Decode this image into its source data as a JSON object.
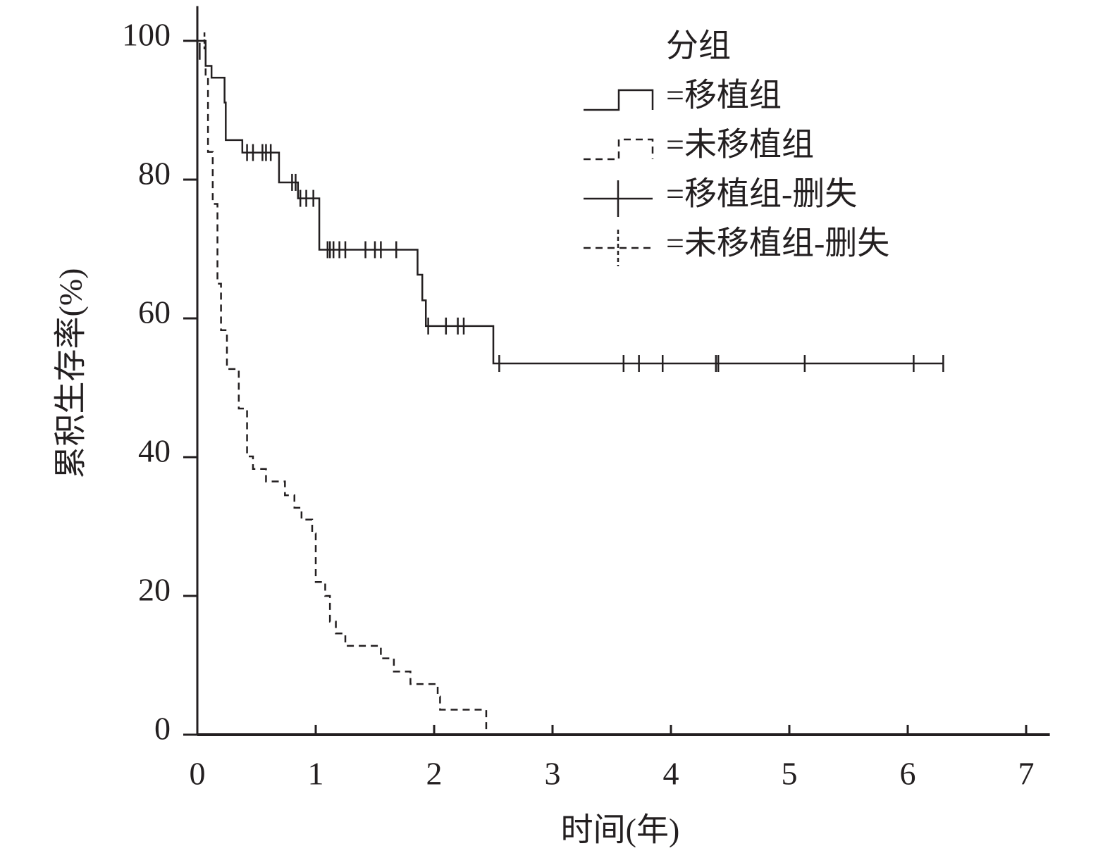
{
  "chart_data": {
    "type": "line",
    "xlabel": "时间(年)",
    "ylabel": "累积生存率(%)",
    "legend_title": "分组",
    "xlim": [
      0,
      7.2
    ],
    "ylim": [
      0,
      105
    ],
    "xticks": [
      0,
      1,
      2,
      3,
      4,
      5,
      6,
      7
    ],
    "yticks": [
      0,
      20,
      40,
      60,
      80,
      100
    ],
    "series": [
      {
        "name": "=移植组",
        "color": "#231f20",
        "dash": false,
        "draw": "step",
        "x": [
          0,
          0.07,
          0.12,
          0.23,
          0.24,
          0.38,
          0.69,
          0.85,
          1.03,
          1.86,
          1.9,
          1.93,
          2.5,
          6.3
        ],
        "values": [
          100,
          96.4,
          94.7,
          91.1,
          85.7,
          83.9,
          79.6,
          77.3,
          69.9,
          66.3,
          62.6,
          58.9,
          53.5,
          53.5
        ]
      },
      {
        "name": "=未移植组",
        "color": "#231f20",
        "dash": true,
        "draw": "step",
        "x": [
          0,
          0.07,
          0.09,
          0.13,
          0.17,
          0.2,
          0.25,
          0.35,
          0.42,
          0.47,
          0.58,
          0.74,
          0.82,
          0.88,
          0.97,
          1.0,
          1.08,
          1.12,
          1.17,
          1.25,
          1.55,
          1.66,
          1.8,
          2.03,
          2.05,
          2.44
        ],
        "values": [
          100,
          95,
          84,
          76.5,
          65,
          58.3,
          52.7,
          47,
          40.1,
          38.3,
          36.5,
          34.5,
          32.7,
          31,
          29,
          22,
          20,
          16.3,
          14.6,
          12.8,
          11,
          9.1,
          7.3,
          5.5,
          3.6,
          0
        ]
      },
      {
        "name": "=移植组-删失",
        "color": "#231f20",
        "dash": false,
        "draw": "censor",
        "x": [
          0.02,
          0.42,
          0.47,
          0.55,
          0.58,
          0.62,
          0.8,
          0.83,
          0.87,
          0.92,
          0.98,
          1.1,
          1.12,
          1.15,
          1.2,
          1.25,
          1.42,
          1.5,
          1.55,
          1.68,
          1.95,
          2.1,
          2.2,
          2.25,
          2.55,
          3.6,
          3.73,
          3.93,
          4.38,
          4.4,
          5.13,
          6.05,
          6.3
        ],
        "values": [
          98.5,
          83.9,
          83.9,
          83.9,
          83.9,
          83.9,
          79.6,
          79.6,
          77.3,
          77.3,
          77.3,
          69.9,
          69.9,
          69.9,
          69.9,
          69.9,
          69.9,
          69.9,
          69.9,
          69.9,
          58.9,
          58.9,
          58.9,
          58.9,
          53.5,
          53.5,
          53.5,
          53.5,
          53.5,
          53.5,
          53.5,
          53.5,
          53.5
        ]
      },
      {
        "name": "=未移植组-删失",
        "color": "#231f20",
        "dash": true,
        "draw": "censor",
        "x": [
          0.06
        ],
        "values": [
          100
        ]
      }
    ]
  }
}
